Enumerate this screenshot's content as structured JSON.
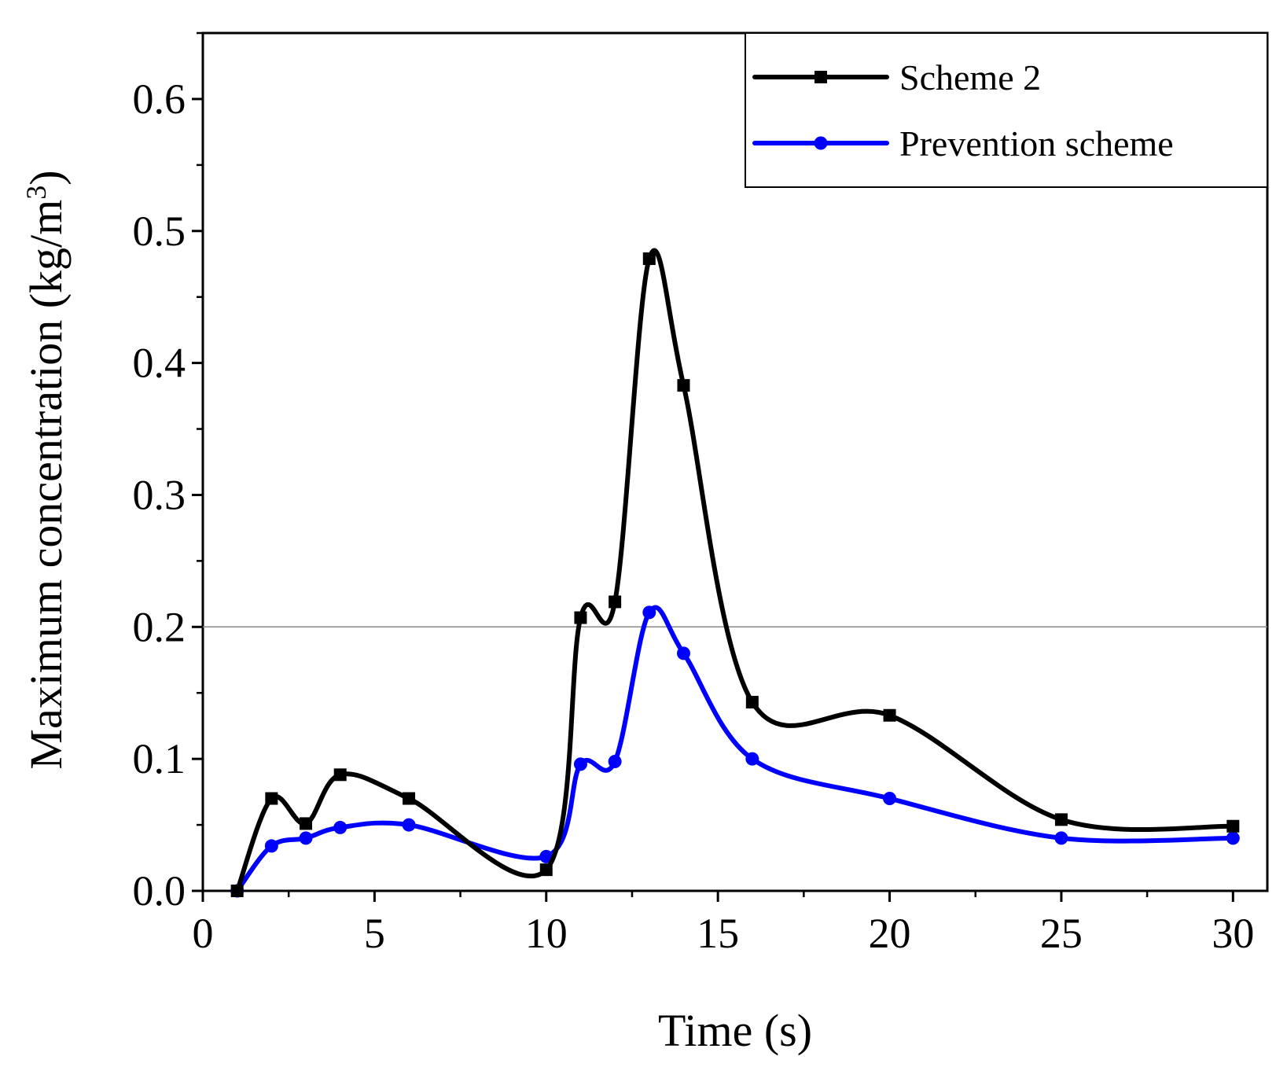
{
  "chart_data": {
    "type": "line",
    "title": "",
    "xlabel": "Time (s)",
    "ylabel": {
      "base": "Maximum concentration (kg/m",
      "superscript": "3",
      "close": ")"
    },
    "xlim": [
      0,
      31
    ],
    "ylim": [
      0,
      0.65
    ],
    "xticks": [
      0,
      5,
      10,
      15,
      20,
      25,
      30
    ],
    "xtick_labels": [
      "0",
      "5",
      "10",
      "15",
      "20",
      "25",
      "30"
    ],
    "yticks": [
      0,
      0.1,
      0.2,
      0.3,
      0.4,
      0.5,
      0.6
    ],
    "ytick_labels": [
      "0.0",
      "0.1",
      "0.2",
      "0.3",
      "0.4",
      "0.5",
      "0.6"
    ],
    "reference_line": {
      "y": 0.2
    },
    "legend_position": "top-right",
    "series": [
      {
        "name": "Scheme 2",
        "color": "#000000",
        "marker": "square",
        "x": [
          1,
          2,
          3,
          4,
          6,
          10,
          11,
          12,
          13,
          14,
          16,
          20,
          25,
          30
        ],
        "values": [
          0.0,
          0.07,
          0.051,
          0.088,
          0.07,
          0.016,
          0.207,
          0.219,
          0.479,
          0.383,
          0.143,
          0.133,
          0.054,
          0.049
        ]
      },
      {
        "name": "Prevention scheme",
        "color": "#0000ff",
        "marker": "circle",
        "x": [
          1,
          2,
          3,
          4,
          6,
          10,
          11,
          12,
          13,
          14,
          16,
          20,
          25,
          30
        ],
        "values": [
          0.0,
          0.034,
          0.04,
          0.048,
          0.05,
          0.026,
          0.096,
          0.098,
          0.211,
          0.18,
          0.1,
          0.07,
          0.04,
          0.04
        ]
      }
    ]
  }
}
